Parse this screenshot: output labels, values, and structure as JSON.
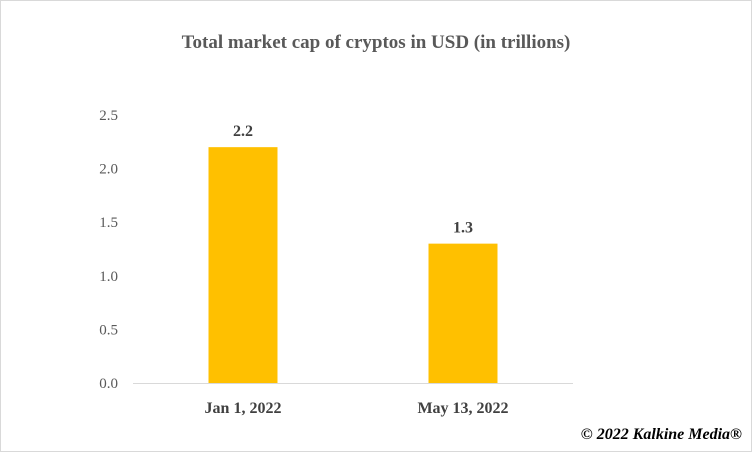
{
  "chart_data": {
    "type": "bar",
    "title": "Total market cap of cryptos in USD (in trillions)",
    "categories": [
      "Jan 1, 2022",
      "May 13, 2022"
    ],
    "values": [
      2.2,
      1.3
    ],
    "data_labels": [
      "2.2",
      "1.3"
    ],
    "y_ticks": [
      "0.0",
      "0.5",
      "1.0",
      "1.5",
      "2.0",
      "2.5"
    ],
    "ylim": [
      0,
      2.5
    ],
    "xlabel": "",
    "ylabel": "",
    "grid": false,
    "legend": "none",
    "bar_color": "#ffc000"
  },
  "footer": {
    "copyright": "© 2022 Kalkine Media®"
  }
}
